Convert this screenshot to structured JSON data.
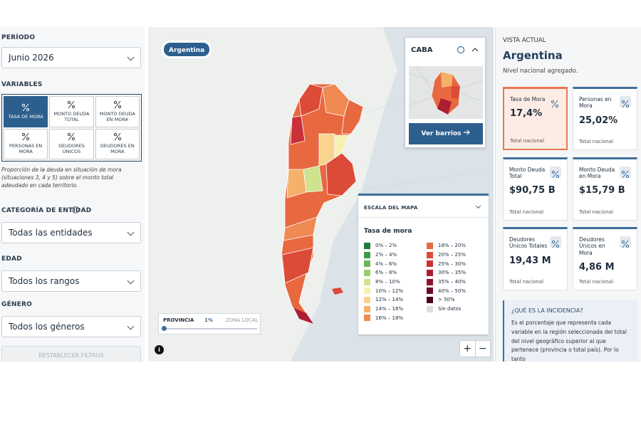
{
  "sidebar": {
    "period": {
      "label": "PERÍODO",
      "value": "Junio 2026"
    },
    "variables": {
      "label": "VARIABLES",
      "options": [
        {
          "label": "TASA DE MORA",
          "selected": true
        },
        {
          "label": "MONTO DEUDA TOTAL",
          "selected": false
        },
        {
          "label": "MONTO DEUDA EN MORA",
          "selected": false
        },
        {
          "label": "PERSONAS EN MORA",
          "selected": false
        },
        {
          "label": "DEUDORES ÚNICOS",
          "selected": false
        },
        {
          "label": "DEUDORES EN MORA",
          "selected": false
        }
      ],
      "description": "Proporción de la deuda en situación de mora (situaciones 3, 4 y 5) sobre el monto total adeudado en cada territorio."
    },
    "filters": [
      {
        "label": "CATEGORÍA DE ENTIDAD",
        "value": "Todas las entidades"
      },
      {
        "label": "EDAD",
        "value": "Todos los rangos"
      },
      {
        "label": "GÉNERO",
        "value": "Todos los géneros"
      }
    ],
    "reset": "RESTABLECER FILTROS"
  },
  "map": {
    "badge": "Argentina",
    "inset": {
      "title": "CABA",
      "button": "Ver barrios"
    },
    "legend": {
      "title": "ESCALA DEL MAPA",
      "subtitle": "Tasa de mora",
      "items": [
        {
          "label": "0% – 2%",
          "color": "#1e7b3c"
        },
        {
          "label": "2% – 4%",
          "color": "#3f9a48"
        },
        {
          "label": "4% – 6%",
          "color": "#6db55a"
        },
        {
          "label": "6% – 8%",
          "color": "#9ccd6e"
        },
        {
          "label": "8% – 10%",
          "color": "#cfe28e"
        },
        {
          "label": "10% – 12%",
          "color": "#f6f0b4"
        },
        {
          "label": "12% – 14%",
          "color": "#f8d48e"
        },
        {
          "label": "14% – 16%",
          "color": "#f5b06a"
        },
        {
          "label": "16% – 18%",
          "color": "#ee8a52"
        },
        {
          "label": "18% – 20%",
          "color": "#e8683f"
        },
        {
          "label": "20% – 25%",
          "color": "#dc4a38"
        },
        {
          "label": "25% – 30%",
          "color": "#c9303a"
        },
        {
          "label": "30% – 35%",
          "color": "#ad1e34"
        },
        {
          "label": "35% – 40%",
          "color": "#8c1230"
        },
        {
          "label": "40% – 50%",
          "color": "#6b0a28"
        },
        {
          "label": "> 50%",
          "color": "#4a0420"
        },
        {
          "label": "Sin datos",
          "color": "#dddddd"
        }
      ]
    },
    "slider": {
      "left": "PROVINCIA",
      "value": "1%",
      "right": "ZONA LOCAL"
    },
    "zoom_in": "+",
    "zoom_out": "−",
    "info": "i"
  },
  "panel": {
    "label": "VISTA ACTUAL",
    "title": "Argentina",
    "subtitle": "Nivel nacional agregado.",
    "cards": [
      {
        "label": "Tasa de Mora",
        "value": "17,4%",
        "footer": "Total nacional",
        "highlight": true
      },
      {
        "label": "Personas en Mora",
        "value": "25,02%",
        "footer": "Total nacional",
        "highlight": false
      },
      {
        "label": "Monto Deuda Total",
        "value": "$90,75 B",
        "footer": "Total nacional",
        "highlight": false
      },
      {
        "label": "Monto Deuda en Mora",
        "value": "$15,79 B",
        "footer": "Total nacional",
        "highlight": false
      },
      {
        "label": "Deudores Únicos Totales",
        "value": "19,43 M",
        "footer": "Total nacional",
        "highlight": false
      },
      {
        "label": "Deudores Únicos en Mora",
        "value": "4,86 M",
        "footer": "Total nacional",
        "highlight": false
      }
    ],
    "info": {
      "title": "¿QUÉ ES LA INCIDENCIA?",
      "text": "Es el porcentaje que representa cada variable en la región seleccionada del total del nivel geográfico superior al que pertenece (provincia o total país). Por lo tanto"
    }
  }
}
